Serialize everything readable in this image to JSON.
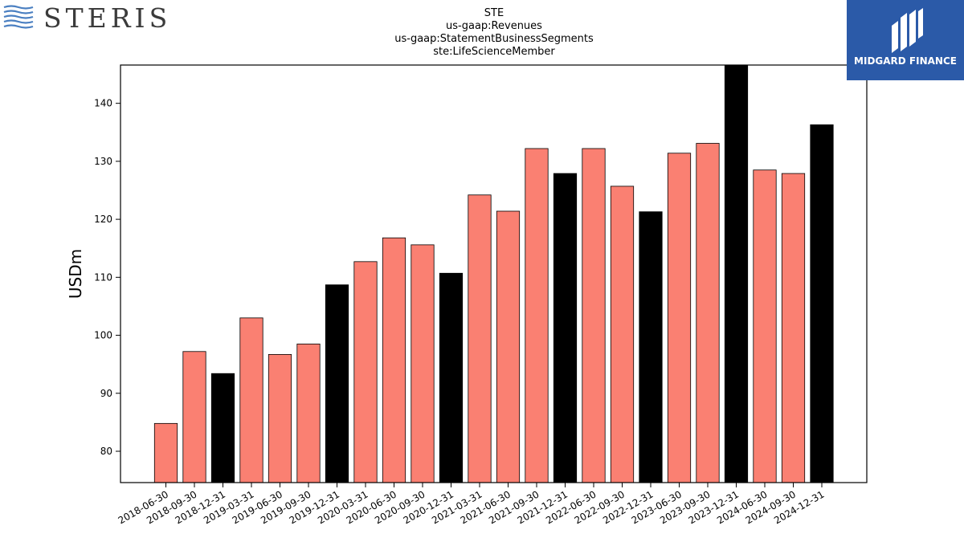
{
  "brand": {
    "company_logo_text": "STERIS",
    "sponsor_logo_text": "MIDGARD FINANCE"
  },
  "colors": {
    "regular_quarter": "#fa8072",
    "year_end": "#000000",
    "edge": "#000000"
  },
  "chart_data": {
    "type": "bar",
    "title_lines": [
      "STE",
      "us-gaap:Revenues",
      "us-gaap:StatementBusinessSegments",
      "ste:LifeScienceMember"
    ],
    "xlabel": "",
    "ylabel": "USDm",
    "ylim": [
      74.6,
      146.6
    ],
    "yticks": [
      80,
      90,
      100,
      110,
      120,
      130,
      140
    ],
    "grid": false,
    "categories": [
      "2018-06-30",
      "2018-09-30",
      "2018-12-31",
      "2019-03-31",
      "2019-06-30",
      "2019-09-30",
      "2019-12-31",
      "2020-03-31",
      "2020-06-30",
      "2020-09-30",
      "2020-12-31",
      "2021-03-31",
      "2021-06-30",
      "2021-09-30",
      "2021-12-31",
      "2022-06-30",
      "2022-09-30",
      "2022-12-31",
      "2023-06-30",
      "2023-09-30",
      "2023-12-31",
      "2024-06-30",
      "2024-09-30",
      "2024-12-31"
    ],
    "values": [
      84.8,
      97.2,
      93.4,
      103.0,
      96.7,
      98.5,
      108.7,
      112.7,
      116.8,
      115.6,
      110.7,
      124.2,
      121.4,
      132.2,
      127.9,
      132.2,
      125.7,
      121.3,
      131.4,
      133.1,
      146.6,
      128.5,
      127.9,
      136.3
    ],
    "year_end_flags": [
      false,
      false,
      true,
      false,
      false,
      false,
      true,
      false,
      false,
      false,
      true,
      false,
      false,
      false,
      true,
      false,
      false,
      true,
      false,
      false,
      true,
      false,
      false,
      true
    ]
  }
}
